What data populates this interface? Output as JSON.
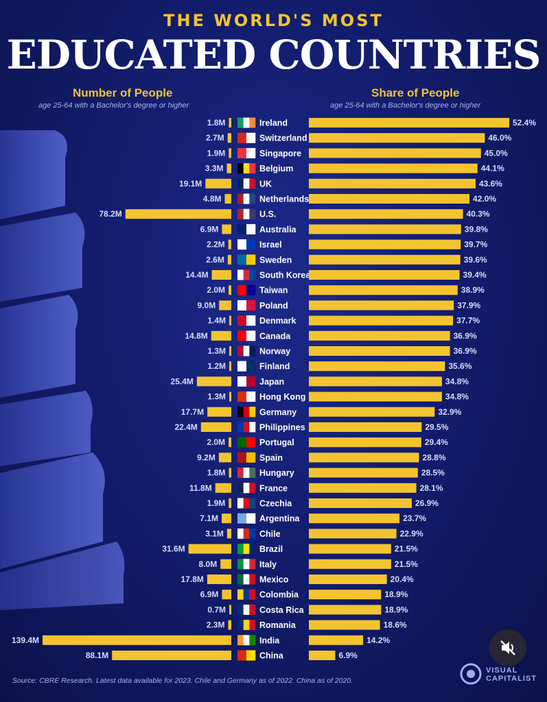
{
  "header": {
    "supertitle": "THE WORLD'S MOST",
    "title": "EDUCATED COUNTRIES"
  },
  "left_column": {
    "heading": "Number of People",
    "subheading": "age 25-64 with a Bachelor's degree or higher"
  },
  "right_column": {
    "heading": "Share of People",
    "subheading": "age 25-64 with a Bachelor's degree or higher"
  },
  "footer": {
    "source": "Source: CBRE Research. Latest data available for 2023. Chile and Germany as of 2022. China as of 2020.",
    "brand_line1": "VISUAL",
    "brand_line2": "CAPITALIST"
  },
  "colors": {
    "bar": "#f4c430",
    "label": "#ffffff",
    "value": "#d7dcff"
  },
  "overlay": {
    "icon": "muted-speaker-icon"
  },
  "chart_data": {
    "type": "bar",
    "categories": [
      "Ireland",
      "Switzerland",
      "Singapore",
      "Belgium",
      "UK",
      "Netherlands",
      "U.S.",
      "Australia",
      "Israel",
      "Sweden",
      "South Korea",
      "Taiwan",
      "Poland",
      "Denmark",
      "Canada",
      "Norway",
      "Finland",
      "Japan",
      "Hong Kong",
      "Germany",
      "Philippines",
      "Portugal",
      "Spain",
      "Hungary",
      "France",
      "Czechia",
      "Argentina",
      "Chile",
      "Brazil",
      "Italy",
      "Mexico",
      "Colombia",
      "Costa Rica",
      "Romania",
      "India",
      "China"
    ],
    "series": [
      {
        "name": "Number of People",
        "unit": "M",
        "values": [
          1.8,
          2.7,
          1.9,
          3.3,
          19.1,
          4.8,
          78.2,
          6.9,
          2.2,
          2.6,
          14.4,
          2.0,
          9.0,
          1.4,
          14.8,
          1.3,
          1.2,
          25.4,
          1.3,
          17.7,
          22.4,
          2.0,
          9.2,
          1.8,
          11.8,
          1.9,
          7.1,
          3.1,
          31.6,
          8.0,
          17.8,
          6.9,
          0.7,
          2.3,
          139.4,
          88.1
        ],
        "labels": [
          "1.8M",
          "2.7M",
          "1.9M",
          "3.3M",
          "19.1M",
          "4.8M",
          "78.2M",
          "6.9M",
          "2.2M",
          "2.6M",
          "14.4M",
          "2.0M",
          "9.0M",
          "1.4M",
          "14.8M",
          "1.3M",
          "1.2M",
          "25.4M",
          "1.3M",
          "17.7M",
          "22.4M",
          "2.0M",
          "9.2M",
          "1.8M",
          "11.8M",
          "1.9M",
          "7.1M",
          "3.1M",
          "31.6M",
          "8.0M",
          "17.8M",
          "6.9M",
          "0.7M",
          "2.3M",
          "139.4M",
          "88.1M"
        ]
      },
      {
        "name": "Share of People",
        "unit": "%",
        "values": [
          52.4,
          46.0,
          45.0,
          44.1,
          43.6,
          42.0,
          40.3,
          39.8,
          39.7,
          39.6,
          39.4,
          38.9,
          37.9,
          37.7,
          36.9,
          36.9,
          35.6,
          34.8,
          34.8,
          32.9,
          29.5,
          29.4,
          28.8,
          28.5,
          28.1,
          26.9,
          23.7,
          22.9,
          21.5,
          21.5,
          20.4,
          18.9,
          18.9,
          18.6,
          14.2,
          6.9
        ],
        "labels": [
          "52.4%",
          "46.0%",
          "45.0%",
          "44.1%",
          "43.6%",
          "42.0%",
          "40.3%",
          "39.8%",
          "39.7%",
          "39.6%",
          "39.4%",
          "38.9%",
          "37.9%",
          "37.7%",
          "36.9%",
          "36.9%",
          "35.6%",
          "34.8%",
          "34.8%",
          "32.9%",
          "29.5%",
          "29.4%",
          "28.8%",
          "28.5%",
          "28.1%",
          "26.9%",
          "23.7%",
          "22.9%",
          "21.5%",
          "21.5%",
          "20.4%",
          "18.9%",
          "18.9%",
          "18.6%",
          "14.2%",
          "6.9%"
        ]
      }
    ],
    "flags": [
      "ireland-flag-icon",
      "switzerland-flag-icon",
      "singapore-flag-icon",
      "belgium-flag-icon",
      "uk-flag-icon",
      "netherlands-flag-icon",
      "us-flag-icon",
      "australia-flag-icon",
      "israel-flag-icon",
      "sweden-flag-icon",
      "south-korea-flag-icon",
      "taiwan-flag-icon",
      "poland-flag-icon",
      "denmark-flag-icon",
      "canada-flag-icon",
      "norway-flag-icon",
      "finland-flag-icon",
      "japan-flag-icon",
      "hong-kong-flag-icon",
      "germany-flag-icon",
      "philippines-flag-icon",
      "portugal-flag-icon",
      "spain-flag-icon",
      "hungary-flag-icon",
      "france-flag-icon",
      "czechia-flag-icon",
      "argentina-flag-icon",
      "chile-flag-icon",
      "brazil-flag-icon",
      "italy-flag-icon",
      "mexico-flag-icon",
      "colombia-flag-icon",
      "costa-rica-flag-icon",
      "romania-flag-icon",
      "india-flag-icon",
      "china-flag-icon"
    ],
    "flag_colors": [
      [
        "#169b62",
        "#ffffff",
        "#ff883e"
      ],
      [
        "#d52b1e",
        "#ffffff"
      ],
      [
        "#ef3340",
        "#ffffff"
      ],
      [
        "#000000",
        "#fdda24",
        "#ef3340"
      ],
      [
        "#012169",
        "#ffffff",
        "#c8102e"
      ],
      [
        "#ae1c28",
        "#ffffff",
        "#21468b"
      ],
      [
        "#b22234",
        "#ffffff",
        "#3c3b6e"
      ],
      [
        "#012169",
        "#ffffff"
      ],
      [
        "#ffffff",
        "#0038b8"
      ],
      [
        "#006aa7",
        "#fecc00"
      ],
      [
        "#ffffff",
        "#cd2e3a",
        "#0047a0"
      ],
      [
        "#fe0000",
        "#000095"
      ],
      [
        "#ffffff",
        "#dc143c"
      ],
      [
        "#c8102e",
        "#ffffff"
      ],
      [
        "#ff0000",
        "#ffffff"
      ],
      [
        "#ba0c2f",
        "#ffffff",
        "#00205b"
      ],
      [
        "#ffffff",
        "#002f6c"
      ],
      [
        "#ffffff",
        "#bc002d"
      ],
      [
        "#de2910",
        "#ffffff"
      ],
      [
        "#000000",
        "#dd0000",
        "#ffce00"
      ],
      [
        "#0038a8",
        "#ce1126",
        "#ffffff"
      ],
      [
        "#006600",
        "#ff0000"
      ],
      [
        "#aa151b",
        "#f1bf00"
      ],
      [
        "#ce2939",
        "#ffffff",
        "#477050"
      ],
      [
        "#002654",
        "#ffffff",
        "#ce1126"
      ],
      [
        "#ffffff",
        "#d7141a",
        "#11457e"
      ],
      [
        "#74acdf",
        "#ffffff"
      ],
      [
        "#ffffff",
        "#d52b1e",
        "#0039a6"
      ],
      [
        "#009c3b",
        "#ffdf00",
        "#002776"
      ],
      [
        "#009246",
        "#ffffff",
        "#ce2b37"
      ],
      [
        "#006847",
        "#ffffff",
        "#ce1126"
      ],
      [
        "#fcd116",
        "#003893",
        "#ce1126"
      ],
      [
        "#002b7f",
        "#ffffff",
        "#ce1126"
      ],
      [
        "#002b7f",
        "#fcd116",
        "#ce1126"
      ],
      [
        "#ff9933",
        "#ffffff",
        "#138808"
      ],
      [
        "#de2910",
        "#ffde00"
      ]
    ],
    "grid": false,
    "legend": "none"
  }
}
